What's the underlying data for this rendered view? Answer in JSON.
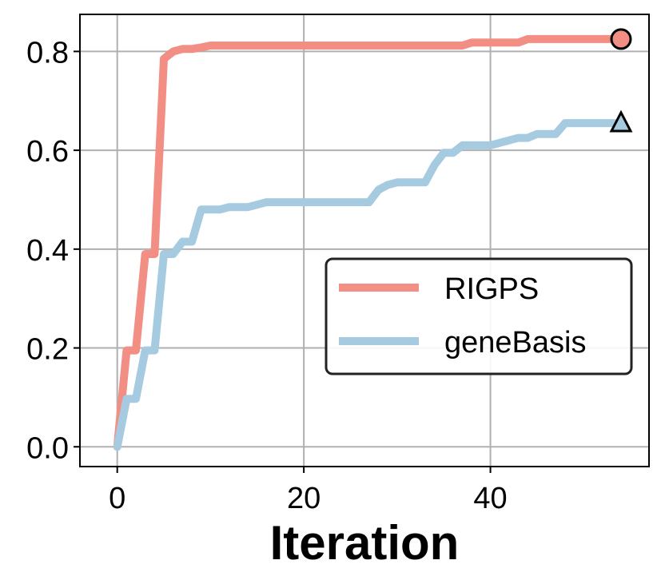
{
  "chart_data": {
    "type": "line",
    "xlabel": "Iteration",
    "ylabel": "",
    "xlim": [
      -4,
      57
    ],
    "ylim": [
      -0.04,
      0.875
    ],
    "xticks": [
      0,
      20,
      40
    ],
    "xtick_labels": [
      "0",
      "20",
      "40"
    ],
    "yticks": [
      0.0,
      0.2,
      0.4,
      0.6,
      0.8
    ],
    "ytick_labels": [
      "0.0",
      "0.2",
      "0.4",
      "0.6",
      "0.8"
    ],
    "grid": true,
    "legend_position": "center-right",
    "series": [
      {
        "name": "RIGPS",
        "color": "#f28e84",
        "marker": "circle",
        "x": [
          0,
          1,
          2,
          3,
          4,
          5,
          6,
          7,
          8,
          9,
          10,
          11,
          12,
          13,
          14,
          15,
          16,
          17,
          18,
          19,
          20,
          21,
          22,
          23,
          24,
          25,
          26,
          27,
          28,
          29,
          30,
          31,
          32,
          33,
          34,
          35,
          36,
          37,
          38,
          39,
          40,
          41,
          42,
          43,
          44,
          45,
          46,
          47,
          48,
          49,
          50,
          51,
          52,
          53,
          54
        ],
        "values": [
          0.0,
          0.195,
          0.195,
          0.39,
          0.39,
          0.785,
          0.8,
          0.805,
          0.805,
          0.808,
          0.812,
          0.812,
          0.812,
          0.812,
          0.812,
          0.812,
          0.812,
          0.812,
          0.812,
          0.812,
          0.812,
          0.812,
          0.812,
          0.812,
          0.812,
          0.812,
          0.812,
          0.812,
          0.812,
          0.812,
          0.812,
          0.812,
          0.812,
          0.812,
          0.812,
          0.812,
          0.812,
          0.812,
          0.818,
          0.818,
          0.818,
          0.818,
          0.818,
          0.818,
          0.825,
          0.825,
          0.825,
          0.825,
          0.825,
          0.825,
          0.825,
          0.825,
          0.825,
          0.825,
          0.825
        ]
      },
      {
        "name": "geneBasis",
        "color": "#a6cbe0",
        "marker": "triangle",
        "x": [
          0,
          1,
          2,
          3,
          4,
          5,
          6,
          7,
          8,
          9,
          10,
          11,
          12,
          13,
          14,
          15,
          16,
          17,
          18,
          19,
          20,
          21,
          22,
          23,
          24,
          25,
          26,
          27,
          28,
          29,
          30,
          31,
          32,
          33,
          34,
          35,
          36,
          37,
          38,
          39,
          40,
          41,
          42,
          43,
          44,
          45,
          46,
          47,
          48,
          49,
          50,
          51,
          52,
          53,
          54
        ],
        "values": [
          0.0,
          0.097,
          0.097,
          0.195,
          0.195,
          0.39,
          0.39,
          0.415,
          0.415,
          0.48,
          0.48,
          0.48,
          0.485,
          0.485,
          0.485,
          0.49,
          0.495,
          0.495,
          0.495,
          0.495,
          0.495,
          0.495,
          0.495,
          0.495,
          0.495,
          0.495,
          0.495,
          0.495,
          0.52,
          0.53,
          0.535,
          0.535,
          0.535,
          0.535,
          0.57,
          0.595,
          0.595,
          0.61,
          0.61,
          0.61,
          0.61,
          0.615,
          0.62,
          0.625,
          0.625,
          0.633,
          0.633,
          0.633,
          0.655,
          0.655,
          0.655,
          0.655,
          0.655,
          0.655,
          0.655
        ]
      }
    ]
  }
}
